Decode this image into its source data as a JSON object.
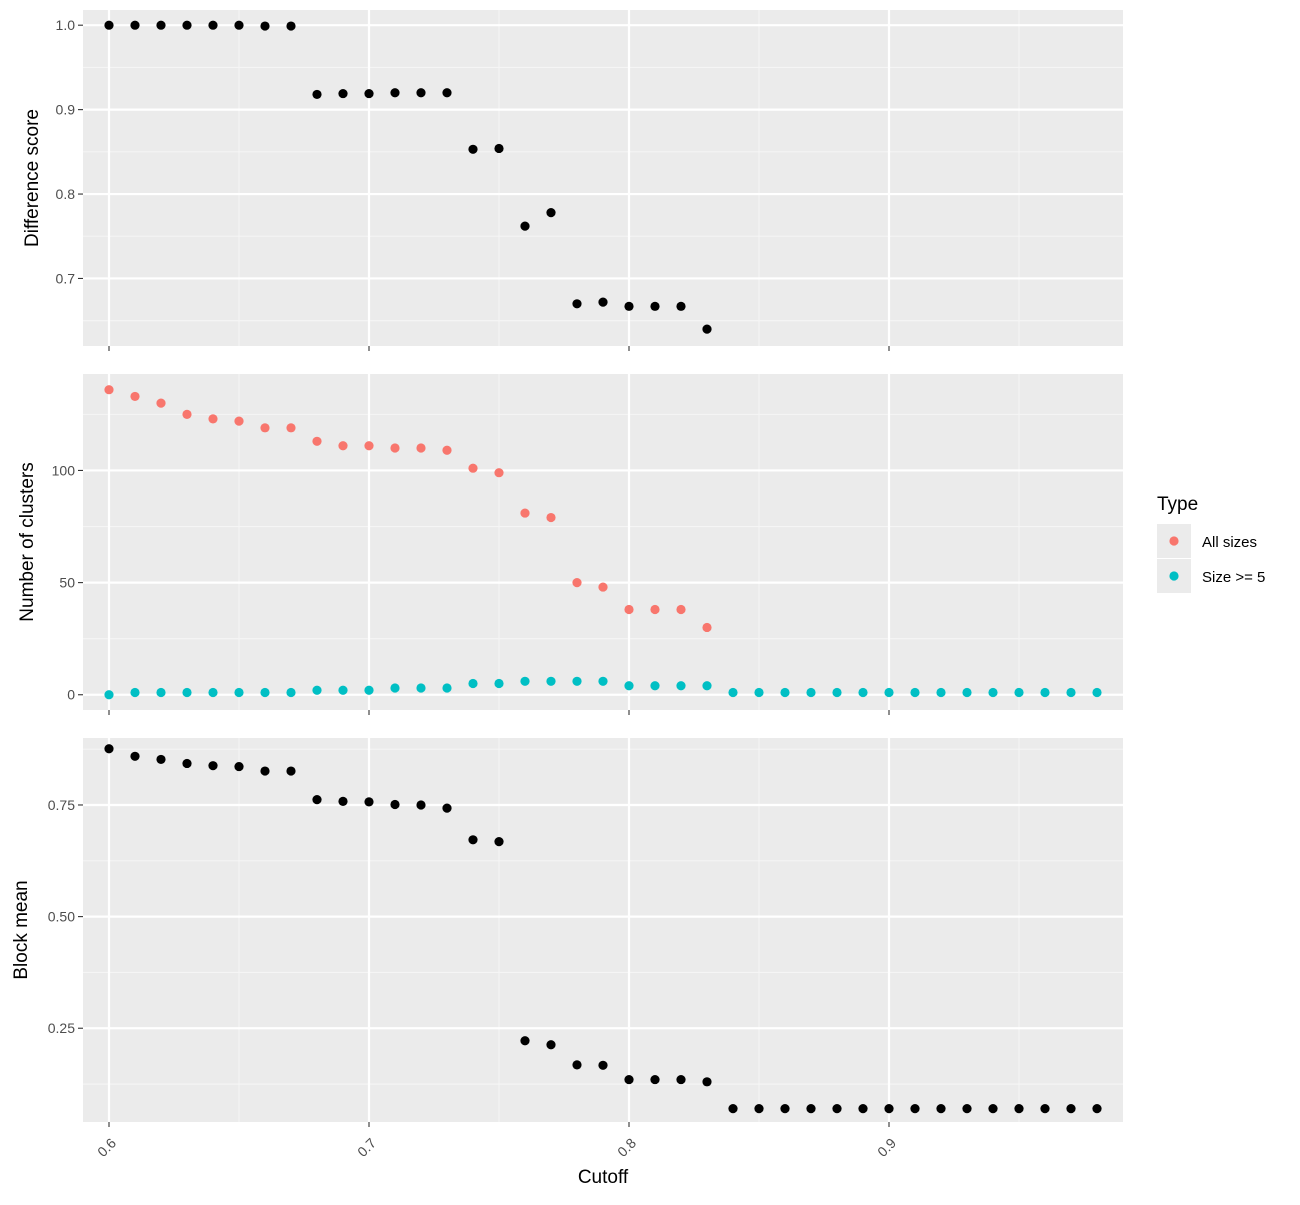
{
  "colors": {
    "panel_bg": "#ebebeb",
    "grid_major": "#ffffff",
    "grid_minor": "#f5f5f5",
    "tick": "#333333",
    "black_points": "#000000",
    "all_sizes": "#f8766d",
    "size_ge_5": "#00bfc4"
  },
  "chart_data": [
    {
      "type": "scatter",
      "ylabel": "Difference score",
      "xlim": [
        0.59,
        0.99
      ],
      "ylim": [
        0.62,
        1.018
      ],
      "x_ticks": [
        0.6,
        0.7,
        0.8,
        0.9
      ],
      "y_ticks": [
        0.7,
        0.8,
        0.9,
        1.0
      ],
      "y_tick_labels": [
        "0.7",
        "0.8",
        "0.9",
        "1.0"
      ],
      "series": [
        {
          "color": "#000000",
          "x": [
            0.6,
            0.61,
            0.62,
            0.63,
            0.64,
            0.65,
            0.66,
            0.67,
            0.68,
            0.69,
            0.7,
            0.71,
            0.72,
            0.73,
            0.74,
            0.75,
            0.76,
            0.77,
            0.78,
            0.79,
            0.8,
            0.81,
            0.82,
            0.83
          ],
          "y": [
            1.0,
            1.0,
            1.0,
            1.0,
            1.0,
            1.0,
            0.999,
            0.999,
            0.918,
            0.919,
            0.919,
            0.92,
            0.92,
            0.92,
            0.853,
            0.854,
            0.762,
            0.778,
            0.67,
            0.672,
            0.667,
            0.667,
            0.667,
            0.64
          ]
        }
      ]
    },
    {
      "type": "scatter",
      "ylabel": "Number of clusters",
      "xlim": [
        0.59,
        0.99
      ],
      "ylim": [
        -6.8,
        143
      ],
      "x_ticks": [
        0.6,
        0.7,
        0.8,
        0.9
      ],
      "y_ticks": [
        0,
        50,
        100
      ],
      "y_tick_labels": [
        "0",
        "50",
        "100"
      ],
      "series": [
        {
          "name": "All sizes",
          "color": "#f8766d",
          "x": [
            0.6,
            0.61,
            0.62,
            0.63,
            0.64,
            0.65,
            0.66,
            0.67,
            0.68,
            0.69,
            0.7,
            0.71,
            0.72,
            0.73,
            0.74,
            0.75,
            0.76,
            0.77,
            0.78,
            0.79,
            0.8,
            0.81,
            0.82,
            0.83
          ],
          "y": [
            136,
            133,
            130,
            125,
            123,
            122,
            119,
            119,
            113,
            111,
            111,
            110,
            110,
            109,
            101,
            99,
            81,
            79,
            50,
            48,
            38,
            38,
            38,
            30
          ]
        },
        {
          "name": "Size >= 5",
          "color": "#00bfc4",
          "x": [
            0.6,
            0.61,
            0.62,
            0.63,
            0.64,
            0.65,
            0.66,
            0.67,
            0.68,
            0.69,
            0.7,
            0.71,
            0.72,
            0.73,
            0.74,
            0.75,
            0.76,
            0.77,
            0.78,
            0.79,
            0.8,
            0.81,
            0.82,
            0.83,
            0.84,
            0.85,
            0.86,
            0.87,
            0.88,
            0.89,
            0.9,
            0.91,
            0.92,
            0.93,
            0.94,
            0.95,
            0.96,
            0.97,
            0.98
          ],
          "y": [
            0,
            1,
            1,
            1,
            1,
            1,
            1,
            1,
            2,
            2,
            2,
            3,
            3,
            3,
            5,
            5,
            6,
            6,
            6,
            6,
            4,
            4,
            4,
            4,
            1,
            1,
            1,
            1,
            1,
            1,
            1,
            1,
            1,
            1,
            1,
            1,
            1,
            1,
            1
          ]
        }
      ]
    },
    {
      "type": "scatter",
      "ylabel": "Block mean",
      "xlabel": "Cutoff",
      "xlim": [
        0.59,
        0.99
      ],
      "ylim": [
        0.04,
        0.9
      ],
      "x_ticks": [
        0.6,
        0.7,
        0.8,
        0.9
      ],
      "x_tick_labels": [
        "0.6",
        "0.7",
        "0.8",
        "0.9"
      ],
      "y_ticks": [
        0.25,
        0.5,
        0.75
      ],
      "y_tick_labels": [
        "0.25",
        "0.50",
        "0.75"
      ],
      "series": [
        {
          "color": "#000000",
          "x": [
            0.6,
            0.61,
            0.62,
            0.63,
            0.64,
            0.65,
            0.66,
            0.67,
            0.68,
            0.69,
            0.7,
            0.71,
            0.72,
            0.73,
            0.74,
            0.75,
            0.76,
            0.77,
            0.78,
            0.79,
            0.8,
            0.81,
            0.82,
            0.83,
            0.84,
            0.85,
            0.86,
            0.87,
            0.88,
            0.89,
            0.9,
            0.91,
            0.92,
            0.93,
            0.94,
            0.95,
            0.96,
            0.97,
            0.98
          ],
          "y": [
            0.876,
            0.859,
            0.852,
            0.843,
            0.838,
            0.836,
            0.826,
            0.826,
            0.762,
            0.758,
            0.757,
            0.751,
            0.75,
            0.743,
            0.672,
            0.668,
            0.222,
            0.213,
            0.168,
            0.167,
            0.135,
            0.135,
            0.135,
            0.13,
            0.07,
            0.07,
            0.07,
            0.07,
            0.07,
            0.07,
            0.07,
            0.07,
            0.07,
            0.07,
            0.07,
            0.07,
            0.07,
            0.07,
            0.07
          ]
        }
      ]
    }
  ],
  "legend": {
    "title": "Type",
    "items": [
      {
        "label": "All sizes",
        "color": "#f8766d"
      },
      {
        "label": "Size >= 5",
        "color": "#00bfc4"
      }
    ]
  }
}
